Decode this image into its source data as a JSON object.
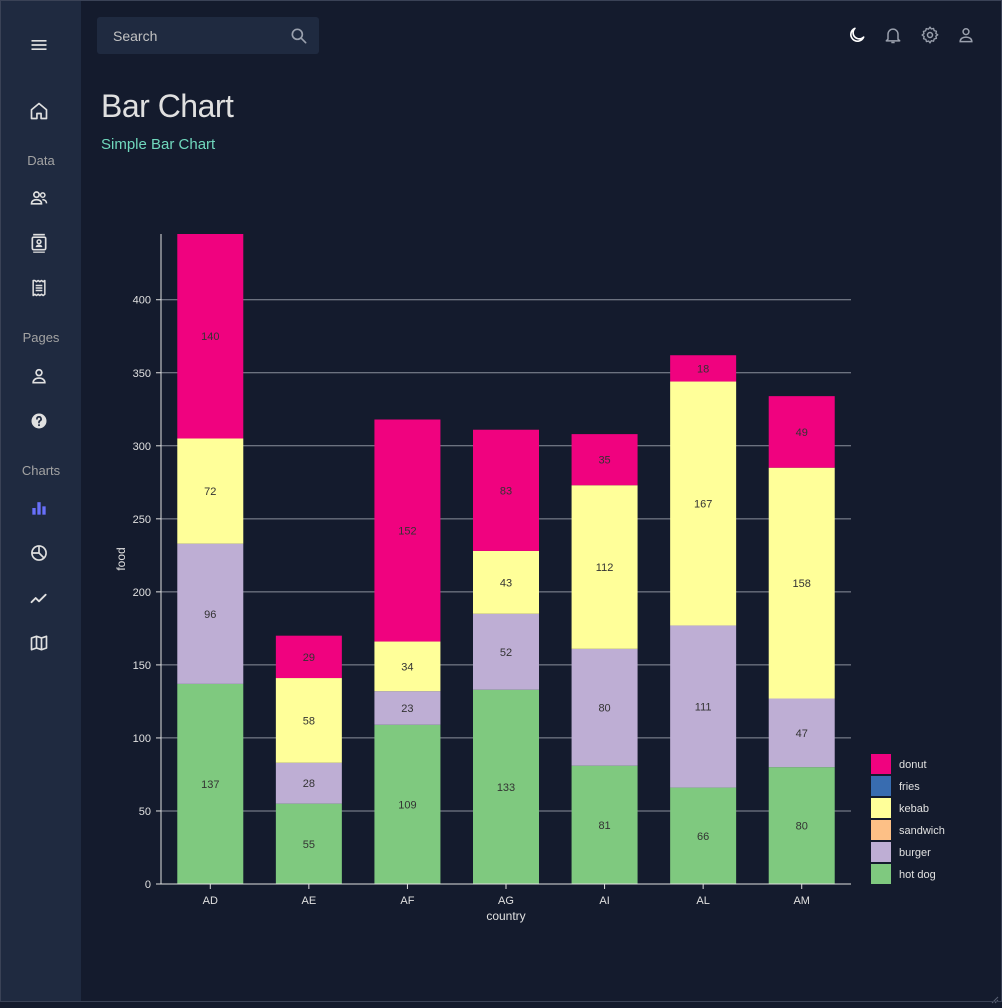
{
  "sidebar": {
    "menu_icon": "menu-icon",
    "items": [
      {
        "icon": "home-icon"
      },
      {
        "section": "Data"
      },
      {
        "icon": "people-icon"
      },
      {
        "icon": "contacts-icon"
      },
      {
        "icon": "receipt-icon"
      },
      {
        "section": "Pages"
      },
      {
        "icon": "person-icon"
      },
      {
        "icon": "help-icon"
      },
      {
        "section": "Charts"
      },
      {
        "icon": "bar-chart-icon",
        "active": true
      },
      {
        "icon": "pie-chart-icon"
      },
      {
        "icon": "line-chart-icon"
      },
      {
        "icon": "map-icon"
      }
    ],
    "sections": {
      "data": "Data",
      "pages": "Pages",
      "charts": "Charts"
    }
  },
  "topbar": {
    "search_placeholder": "Search",
    "icons": [
      "dark-mode-icon",
      "notifications-icon",
      "settings-icon",
      "profile-icon"
    ]
  },
  "header": {
    "title": "Bar Chart",
    "subtitle": "Simple Bar Chart"
  },
  "colors": {
    "background": "#141b2d",
    "sidebar": "#1f2a40",
    "accent": "#70d8bd",
    "active_icon": "#6870fa",
    "grid": "#8a8f9c"
  },
  "chart_data": {
    "type": "bar",
    "stacked": true,
    "categories": [
      "AD",
      "AE",
      "AF",
      "AG",
      "AI",
      "AL",
      "AM"
    ],
    "xlabel": "country",
    "ylabel": "food",
    "ylim": [
      0,
      445
    ],
    "yticks": [
      0,
      50,
      100,
      150,
      200,
      250,
      300,
      350,
      400
    ],
    "grid": true,
    "legend_position": "bottom-right",
    "series": [
      {
        "name": "hot dog",
        "color": "#7fc97f",
        "values": [
          137,
          55,
          109,
          133,
          81,
          66,
          80
        ]
      },
      {
        "name": "burger",
        "color": "#beaed4",
        "values": [
          96,
          28,
          23,
          52,
          80,
          111,
          47
        ]
      },
      {
        "name": "sandwich",
        "color": "#fdc086",
        "values": [
          0,
          0,
          0,
          0,
          0,
          0,
          0
        ]
      },
      {
        "name": "kebab",
        "color": "#ffff99",
        "values": [
          72,
          58,
          34,
          43,
          112,
          167,
          158
        ]
      },
      {
        "name": "fries",
        "color": "#386cb0",
        "values": [
          0,
          0,
          0,
          0,
          0,
          0,
          0
        ]
      },
      {
        "name": "donut",
        "color": "#f0027f",
        "values": [
          140,
          29,
          152,
          83,
          35,
          18,
          49
        ]
      }
    ],
    "legend_order": [
      "donut",
      "fries",
      "kebab",
      "sandwich",
      "burger",
      "hot dog"
    ]
  }
}
